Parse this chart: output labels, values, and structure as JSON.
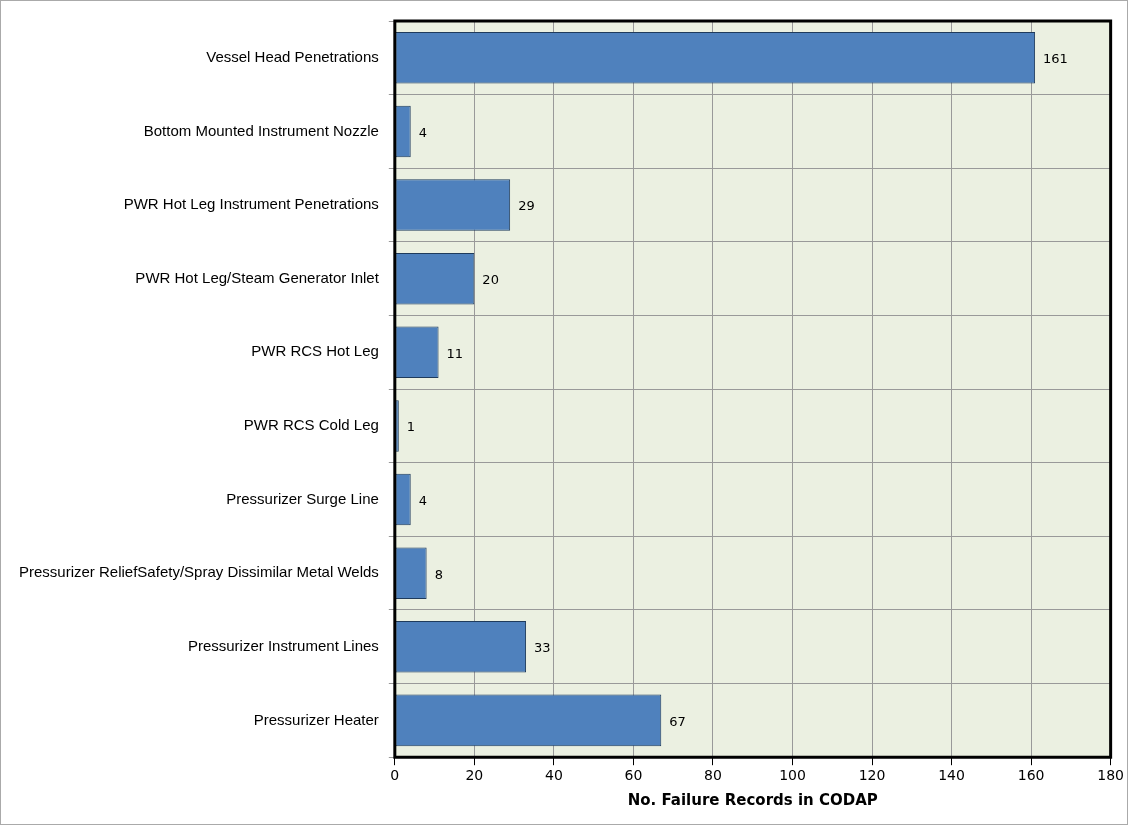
{
  "chart_data": {
    "type": "bar",
    "orientation": "horizontal",
    "xlabel": "No. Failure Records in CODAP",
    "categories": [
      "Vessel Head Penetrations",
      "Bottom Mounted Instrument Nozzle",
      "PWR Hot Leg Instrument Penetrations",
      "PWR Hot Leg/Steam Generator Inlet",
      "PWR RCS Hot Leg",
      "PWR RCS Cold Leg",
      "Pressurizer Surge Line",
      "Pressurizer ReliefSafety/Spray Dissimilar Metal Welds",
      "Pressurizer Instrument Lines",
      "Pressurizer Heater"
    ],
    "values": [
      161,
      4,
      29,
      20,
      11,
      1,
      4,
      8,
      33,
      67
    ],
    "color": "#4f81bd",
    "xlim": [
      0,
      180
    ],
    "xticks": [
      0,
      20,
      40,
      60,
      80,
      100,
      120,
      140,
      160,
      180
    ],
    "grid": true,
    "data_labels": true,
    "legend": false
  }
}
